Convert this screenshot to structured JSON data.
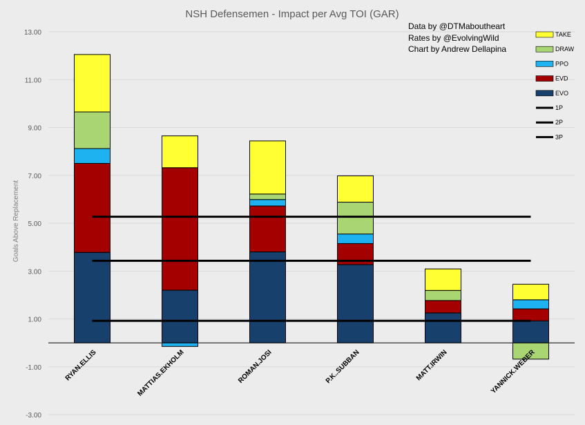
{
  "chart_data": {
    "type": "bar",
    "stacked": true,
    "title": "NSH Defensemen - Impact per Avg TOI (GAR)",
    "ylabel": "Goals Above Replacement",
    "xlabel": "",
    "ylim": [
      -3,
      13
    ],
    "yticks": [
      -3,
      -1,
      1,
      3,
      5,
      7,
      9,
      11,
      13
    ],
    "ytick_labels": [
      "-3.00",
      "-1.00",
      "1.00",
      "3.00",
      "5.00",
      "7.00",
      "9.00",
      "11.00",
      "13.00"
    ],
    "categories": [
      "RYAN.ELLIS",
      "MATTIAS.EKHOLM",
      "ROMAN.JOSI",
      "P.K..SUBBAN",
      "MATT.IRWIN",
      "YANNICK.WEBER"
    ],
    "series": [
      {
        "name": "EVO",
        "color": "#17406d",
        "values": [
          3.78,
          2.2,
          3.8,
          3.27,
          1.25,
          0.92
        ]
      },
      {
        "name": "EVD",
        "color": "#a50000",
        "values": [
          3.72,
          5.12,
          1.92,
          0.88,
          0.52,
          0.5
        ]
      },
      {
        "name": "PPO",
        "color": "#1eb3f0",
        "values": [
          0.62,
          -0.15,
          0.27,
          0.4,
          0.0,
          0.38
        ]
      },
      {
        "name": "DRAW",
        "color": "#a9d672",
        "values": [
          1.53,
          0.0,
          0.23,
          1.33,
          0.42,
          -0.68
        ]
      },
      {
        "name": "TAKE",
        "color": "#ffff33",
        "values": [
          2.4,
          1.33,
          2.22,
          1.1,
          0.9,
          0.65
        ]
      }
    ],
    "reference_lines": [
      {
        "name": "1P",
        "value": 5.27,
        "color": "#000000"
      },
      {
        "name": "2P",
        "value": 3.43,
        "color": "#000000"
      },
      {
        "name": "3P",
        "value": 0.92,
        "color": "#000000"
      }
    ],
    "legend": {
      "position": "top-right",
      "order": [
        "TAKE",
        "DRAW",
        "PPO",
        "EVD",
        "EVO",
        "1P",
        "2P",
        "3P"
      ]
    },
    "annotations": [
      "Data by @DTMaboutheart",
      "Rates by @EvolvingWild",
      "Chart by Andrew Dellapina"
    ],
    "grid": true
  }
}
